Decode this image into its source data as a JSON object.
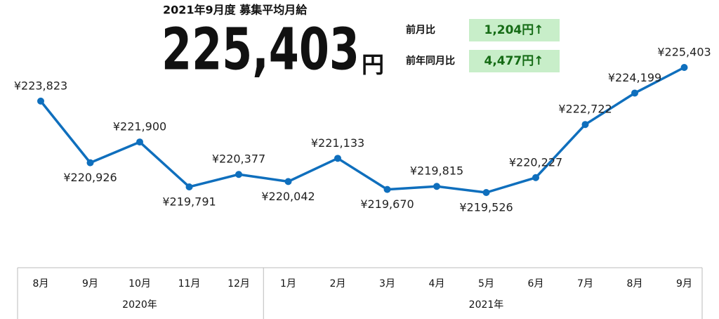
{
  "header": {
    "title": "2021年9月度 募集平均月給",
    "headline_value": "225,403",
    "headline_unit": "円",
    "comparisons": [
      {
        "label": "前月比",
        "value": "1,204円↑"
      },
      {
        "label": "前年同月比",
        "value": "4,477円↑"
      }
    ]
  },
  "chart_data": {
    "type": "line",
    "color": "#0f6fbd",
    "year_groups": [
      {
        "label": "2020年",
        "categories": [
          "8月",
          "9月",
          "10月",
          "11月",
          "12月"
        ]
      },
      {
        "label": "2021年",
        "categories": [
          "1月",
          "2月",
          "3月",
          "4月",
          "5月",
          "6月",
          "7月",
          "8月",
          "9月"
        ]
      }
    ],
    "values": [
      223823,
      220926,
      221900,
      219791,
      220377,
      220042,
      221133,
      219670,
      219815,
      219526,
      220227,
      222722,
      224199,
      225403
    ],
    "value_labels": [
      "¥223,823",
      "¥220,926",
      "¥221,900",
      "¥219,791",
      "¥220,377",
      "¥220,042",
      "¥221,133",
      "¥219,670",
      "¥219,815",
      "¥219,526",
      "¥220,227",
      "¥222,722",
      "¥224,199",
      "¥225,403"
    ]
  }
}
